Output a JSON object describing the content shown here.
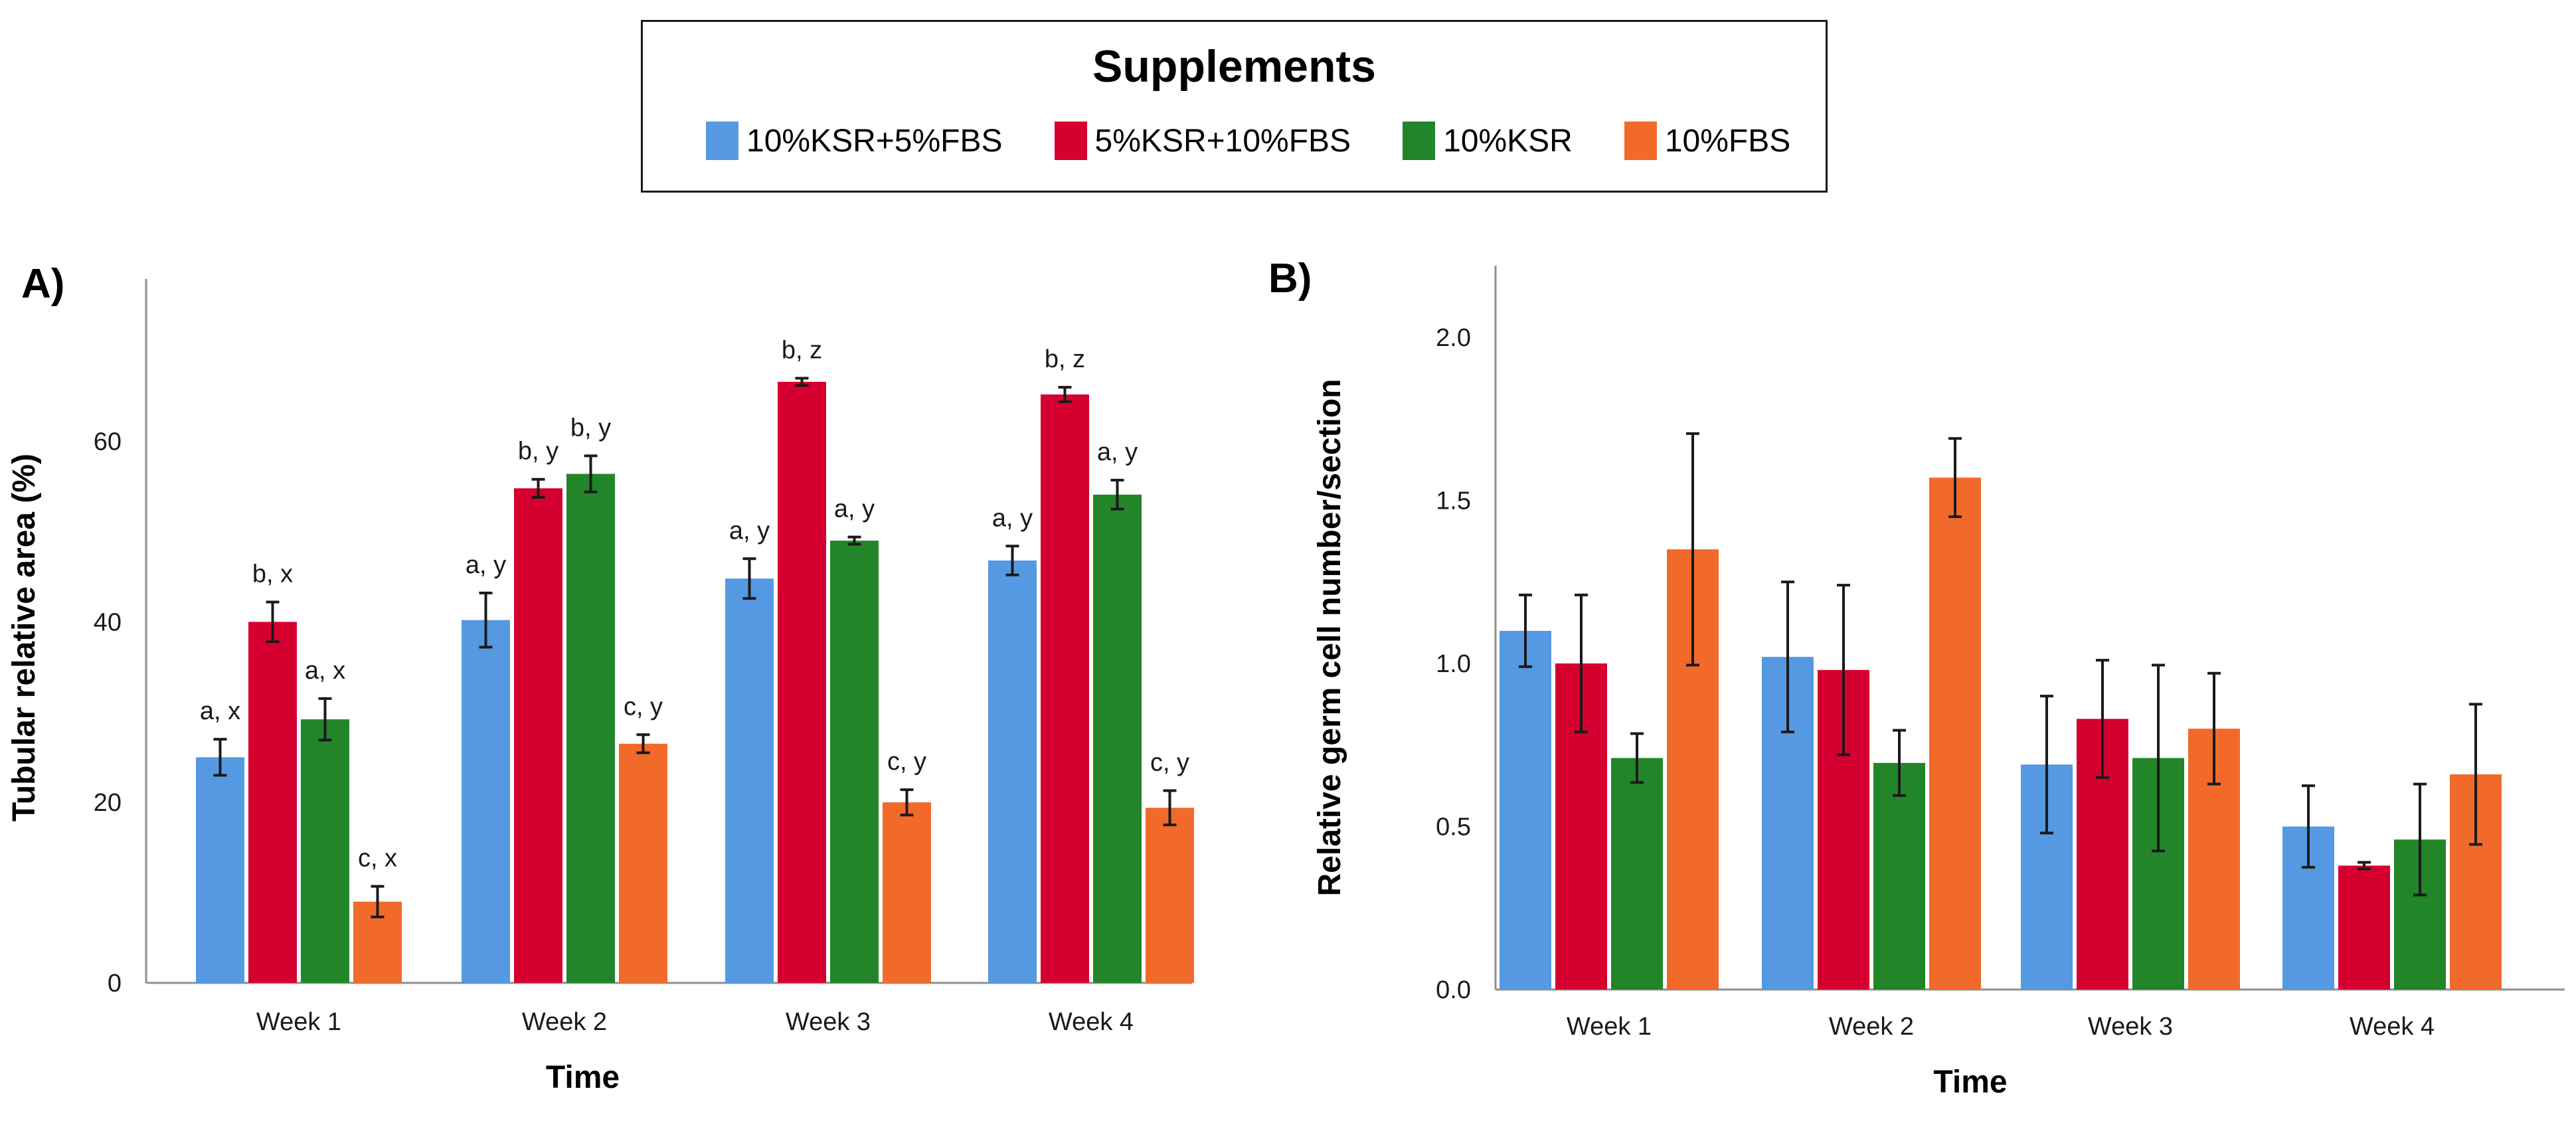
{
  "legend": {
    "title": "Supplements",
    "items": [
      {
        "label": "10%KSR+5%FBS",
        "color": "#5599e2"
      },
      {
        "label": "5%KSR+10%FBS",
        "color": "#d5002f"
      },
      {
        "label": "10%KSR",
        "color": "#238529"
      },
      {
        "label": "10%FBS",
        "color": "#f26a2a"
      }
    ]
  },
  "chart_data": [
    {
      "type": "bar",
      "panel_label": "A)",
      "title": "",
      "xlabel": "Time",
      "ylabel": "Tubular relative area (%)",
      "ylim": [
        0,
        78
      ],
      "yticks": [
        0,
        20,
        40,
        60
      ],
      "grid": false,
      "categories": [
        "Week 1",
        "Week 2",
        "Week 3",
        "Week 4"
      ],
      "series": [
        {
          "name": "10%KSR+5%FBS",
          "values": [
            25,
            40.2,
            44.8,
            46.8
          ],
          "errors": [
            2,
            3,
            2.2,
            1.6
          ],
          "annotations": [
            "a, x",
            "a, y",
            "a, y",
            "a, y"
          ]
        },
        {
          "name": "5%KSR+10%FBS",
          "values": [
            40,
            54.8,
            66.6,
            65.2
          ],
          "errors": [
            2.2,
            1,
            0.4,
            0.8
          ],
          "annotations": [
            "b, x",
            "b, y",
            "b, z",
            "b, z"
          ]
        },
        {
          "name": "10%KSR",
          "values": [
            29.2,
            56.4,
            49,
            54.1
          ],
          "errors": [
            2.3,
            2,
            0.4,
            1.6
          ],
          "annotations": [
            "a, x",
            "b, y",
            "a, y",
            "a, y"
          ]
        },
        {
          "name": "10%FBS",
          "values": [
            9,
            26.5,
            20,
            19.4
          ],
          "errors": [
            1.7,
            1,
            1.4,
            1.9
          ],
          "annotations": [
            "c, x",
            "c, y",
            "c, y",
            "c, y"
          ]
        }
      ]
    },
    {
      "type": "bar",
      "panel_label": "B)",
      "title": "",
      "xlabel": "Time",
      "ylabel": "Relative germ cell number/section",
      "ylim": [
        0,
        2.22
      ],
      "yticks": [
        0.0,
        0.5,
        1.0,
        1.5,
        2.0
      ],
      "grid": false,
      "categories": [
        "Week 1",
        "Week 2",
        "Week 3",
        "Week 4"
      ],
      "series": [
        {
          "name": "10%KSR+5%FBS",
          "values": [
            1.1,
            1.02,
            0.69,
            0.5
          ],
          "errors": [
            0.11,
            0.23,
            0.21,
            0.125
          ]
        },
        {
          "name": "5%KSR+10%FBS",
          "values": [
            1.0,
            0.98,
            0.83,
            0.38
          ],
          "errors": [
            0.21,
            0.26,
            0.18,
            0.01
          ]
        },
        {
          "name": "10%KSR",
          "values": [
            0.71,
            0.695,
            0.71,
            0.46
          ],
          "errors": [
            0.075,
            0.1,
            0.285,
            0.17
          ]
        },
        {
          "name": "10%FBS",
          "values": [
            1.35,
            1.57,
            0.8,
            0.66
          ],
          "errors": [
            0.355,
            0.12,
            0.17,
            0.215
          ]
        }
      ]
    }
  ]
}
